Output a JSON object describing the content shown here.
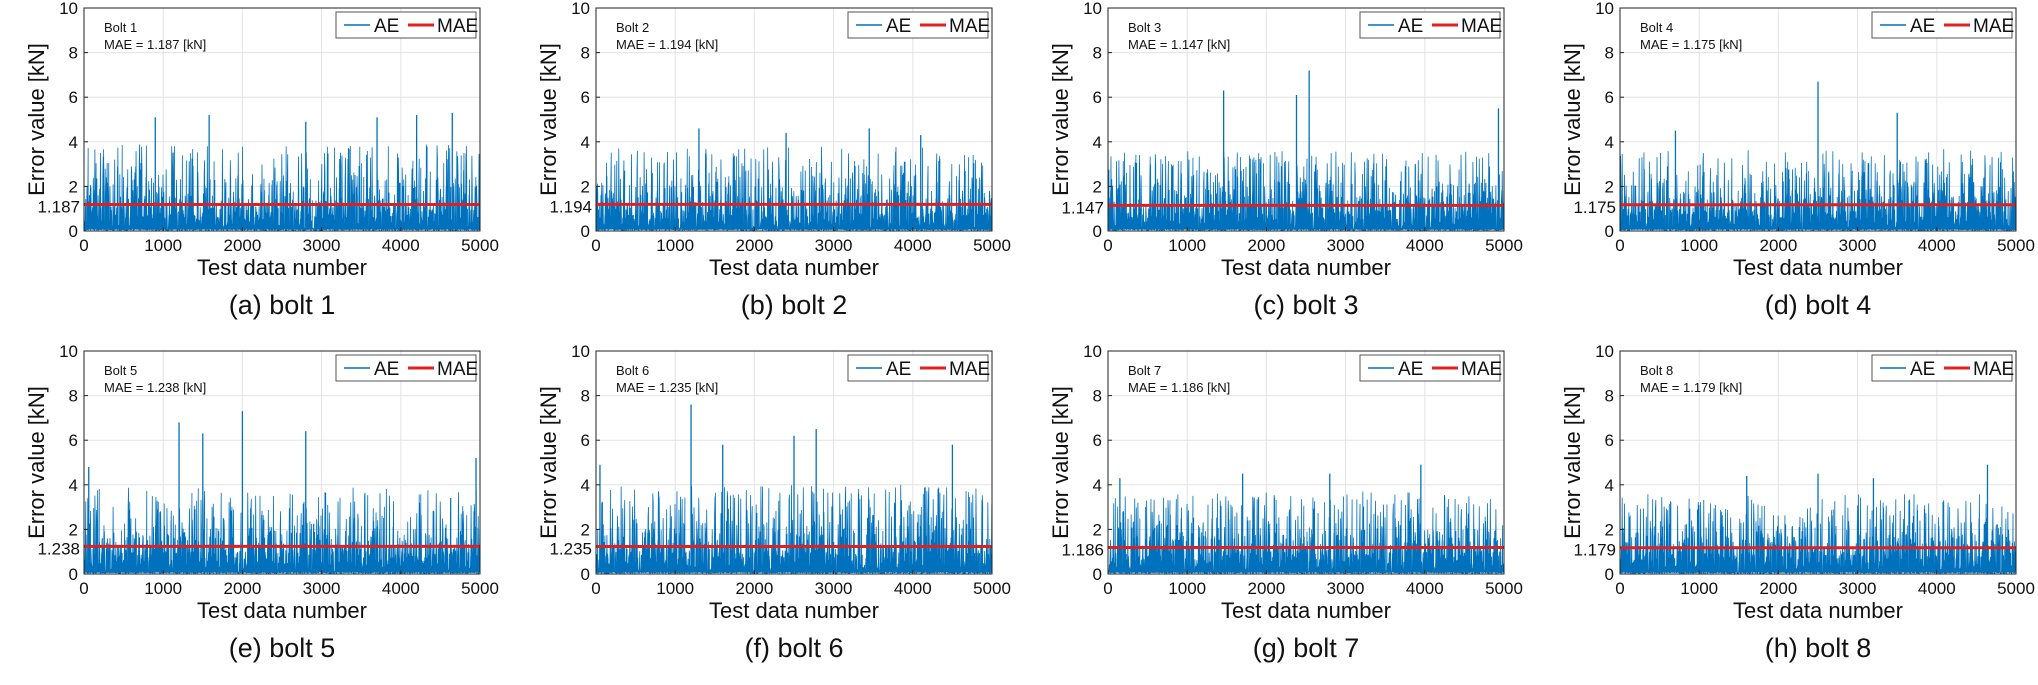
{
  "colors": {
    "ae": "#0072BD",
    "mae": "#E02020",
    "grid": "#E3E3E3",
    "axis": "#222222"
  },
  "chart_data": [
    {
      "type": "line",
      "caption": "(a) bolt 1",
      "panel_label": "Bolt 1",
      "mae_text": "MAE = 1.187 [kN]",
      "mae": 1.187,
      "mae_tick": "1.187",
      "series": [
        {
          "name": "AE"
        },
        {
          "name": "MAE"
        }
      ],
      "typical_max": 3.9,
      "spikes": [
        [
          900,
          5.1
        ],
        [
          1580,
          5.2
        ],
        [
          2800,
          4.9
        ],
        [
          3700,
          5.1
        ],
        [
          4200,
          5.2
        ],
        [
          4650,
          5.3
        ]
      ],
      "xlabel": "Test data number",
      "ylabel": "Error value [kN]",
      "xlim": [
        0,
        5000
      ],
      "ylim": [
        0,
        10
      ],
      "xticks": [
        0,
        1000,
        2000,
        3000,
        4000,
        5000
      ],
      "yticks": [
        0,
        2,
        4,
        6,
        8,
        10
      ],
      "grid": true,
      "legend": "top-right"
    },
    {
      "type": "line",
      "caption": "(b) bolt 2",
      "panel_label": "Bolt 2",
      "mae_text": "MAE = 1.194 [kN]",
      "mae": 1.194,
      "mae_tick": "1.194",
      "series": [
        {
          "name": "AE"
        },
        {
          "name": "MAE"
        }
      ],
      "typical_max": 3.8,
      "spikes": [
        [
          1300,
          4.6
        ],
        [
          2400,
          4.4
        ],
        [
          3450,
          4.6
        ],
        [
          4100,
          4.3
        ]
      ],
      "xlabel": "Test data number",
      "ylabel": "Error value [kN]",
      "xlim": [
        0,
        5000
      ],
      "ylim": [
        0,
        10
      ],
      "xticks": [
        0,
        1000,
        2000,
        3000,
        4000,
        5000
      ],
      "yticks": [
        0,
        2,
        4,
        6,
        8,
        10
      ],
      "grid": true,
      "legend": "top-right"
    },
    {
      "type": "line",
      "caption": "(c) bolt 3",
      "panel_label": "Bolt 3",
      "mae_text": "MAE = 1.147 [kN]",
      "mae": 1.147,
      "mae_tick": "1.147",
      "series": [
        {
          "name": "AE"
        },
        {
          "name": "MAE"
        }
      ],
      "typical_max": 3.6,
      "spikes": [
        [
          1460,
          6.3
        ],
        [
          2380,
          6.1
        ],
        [
          2540,
          7.2
        ],
        [
          4930,
          5.5
        ]
      ],
      "xlabel": "Test data number",
      "ylabel": "Error value [kN]",
      "xlim": [
        0,
        5000
      ],
      "ylim": [
        0,
        10
      ],
      "xticks": [
        0,
        1000,
        2000,
        3000,
        4000,
        5000
      ],
      "yticks": [
        0,
        2,
        4,
        6,
        8,
        10
      ],
      "grid": true,
      "legend": "top-right"
    },
    {
      "type": "line",
      "caption": "(d) bolt 4",
      "panel_label": "Bolt 4",
      "mae_text": "MAE = 1.175 [kN]",
      "mae": 1.175,
      "mae_tick": "1.175",
      "series": [
        {
          "name": "AE"
        },
        {
          "name": "MAE"
        }
      ],
      "typical_max": 3.7,
      "spikes": [
        [
          700,
          4.5
        ],
        [
          2500,
          6.7
        ],
        [
          3500,
          5.3
        ]
      ],
      "xlabel": "Test data number",
      "ylabel": "Error value [kN]",
      "xlim": [
        0,
        5000
      ],
      "ylim": [
        0,
        10
      ],
      "xticks": [
        0,
        1000,
        2000,
        3000,
        4000,
        5000
      ],
      "yticks": [
        0,
        2,
        4,
        6,
        8,
        10
      ],
      "grid": true,
      "legend": "top-right"
    },
    {
      "type": "line",
      "caption": "(e) bolt 5",
      "panel_label": "Bolt 5",
      "mae_text": "MAE = 1.238 [kN]",
      "mae": 1.238,
      "mae_tick": "1.238",
      "series": [
        {
          "name": "AE"
        },
        {
          "name": "MAE"
        }
      ],
      "typical_max": 3.9,
      "spikes": [
        [
          60,
          4.8
        ],
        [
          1200,
          6.8
        ],
        [
          1500,
          6.3
        ],
        [
          2000,
          7.3
        ],
        [
          2800,
          6.4
        ],
        [
          4950,
          5.2
        ]
      ],
      "xlabel": "Test data number",
      "ylabel": "Error value [kN]",
      "xlim": [
        0,
        5000
      ],
      "ylim": [
        0,
        10
      ],
      "xticks": [
        0,
        1000,
        2000,
        3000,
        4000,
        5000
      ],
      "yticks": [
        0,
        2,
        4,
        6,
        8,
        10
      ],
      "grid": true,
      "legend": "top-right"
    },
    {
      "type": "line",
      "caption": "(f) bolt 6",
      "panel_label": "Bolt 6",
      "mae_text": "MAE = 1.235 [kN]",
      "mae": 1.235,
      "mae_tick": "1.235",
      "series": [
        {
          "name": "AE"
        },
        {
          "name": "MAE"
        }
      ],
      "typical_max": 4.0,
      "spikes": [
        [
          50,
          4.9
        ],
        [
          1200,
          7.6
        ],
        [
          1600,
          5.8
        ],
        [
          2500,
          6.2
        ],
        [
          2780,
          6.5
        ],
        [
          4500,
          5.8
        ]
      ],
      "xlabel": "Test data number",
      "ylabel": "Error value [kN]",
      "xlim": [
        0,
        5000
      ],
      "ylim": [
        0,
        10
      ],
      "xticks": [
        0,
        1000,
        2000,
        3000,
        4000,
        5000
      ],
      "yticks": [
        0,
        2,
        4,
        6,
        8,
        10
      ],
      "grid": true,
      "legend": "top-right"
    },
    {
      "type": "line",
      "caption": "(g) bolt 7",
      "panel_label": "Bolt 7",
      "mae_text": "MAE = 1.186 [kN]",
      "mae": 1.186,
      "mae_tick": "1.186",
      "series": [
        {
          "name": "AE"
        },
        {
          "name": "MAE"
        }
      ],
      "typical_max": 3.7,
      "spikes": [
        [
          150,
          4.3
        ],
        [
          1700,
          4.5
        ],
        [
          2800,
          4.5
        ],
        [
          3950,
          4.9
        ]
      ],
      "xlabel": "Test data number",
      "ylabel": "Error value [kN]",
      "xlim": [
        0,
        5000
      ],
      "ylim": [
        0,
        10
      ],
      "xticks": [
        0,
        1000,
        2000,
        3000,
        4000,
        5000
      ],
      "yticks": [
        0,
        2,
        4,
        6,
        8,
        10
      ],
      "grid": true,
      "legend": "top-right"
    },
    {
      "type": "line",
      "caption": "(h) bolt 8",
      "panel_label": "Bolt 8",
      "mae_text": "MAE = 1.179 [kN]",
      "mae": 1.179,
      "mae_tick": "1.179",
      "series": [
        {
          "name": "AE"
        },
        {
          "name": "MAE"
        }
      ],
      "typical_max": 3.6,
      "spikes": [
        [
          1600,
          4.4
        ],
        [
          2500,
          4.5
        ],
        [
          3200,
          4.3
        ],
        [
          4640,
          4.9
        ]
      ],
      "xlabel": "Test data number",
      "ylabel": "Error value [kN]",
      "xlim": [
        0,
        5000
      ],
      "ylim": [
        0,
        10
      ],
      "xticks": [
        0,
        1000,
        2000,
        3000,
        4000,
        5000
      ],
      "yticks": [
        0,
        2,
        4,
        6,
        8,
        10
      ],
      "grid": true,
      "legend": "top-right"
    }
  ]
}
